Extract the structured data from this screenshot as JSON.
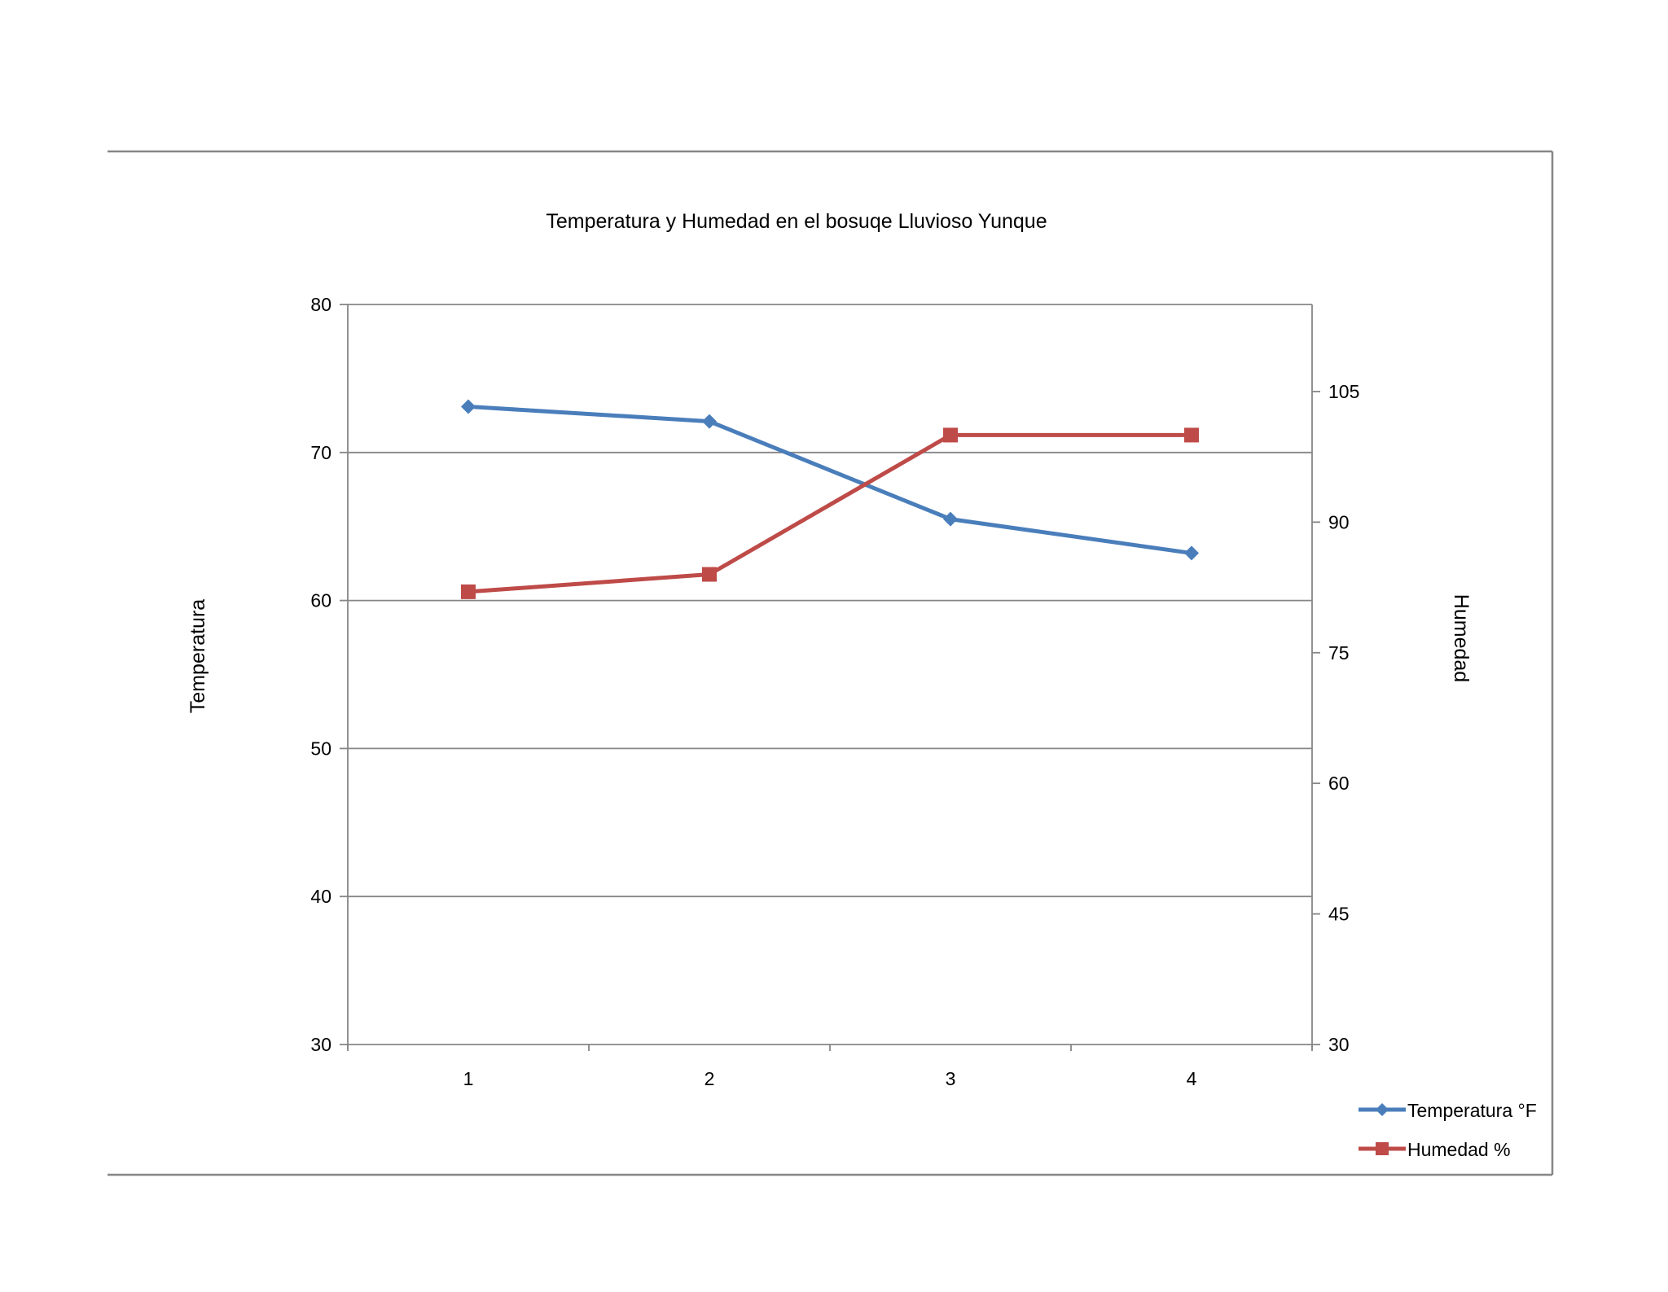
{
  "chart_data": {
    "type": "line",
    "title": "Temperatura y Humedad en el bosuqe Lluvioso  Yunque",
    "categories": [
      "1",
      "2",
      "3",
      "4"
    ],
    "y_left": {
      "label": "Temperatura",
      "range": [
        30,
        80
      ],
      "ticks": [
        "30",
        "40",
        "50",
        "60",
        "70",
        "80"
      ]
    },
    "y_right": {
      "label": "Humedad",
      "range": [
        30,
        115
      ],
      "ticks": [
        "30",
        "45",
        "60",
        "75",
        "90",
        "105"
      ]
    },
    "grid": true,
    "legend_position": "bottom-right",
    "series": [
      {
        "name": "Temperatura °F",
        "axis": "left",
        "marker": "diamond",
        "color": "#4a7ebb",
        "values": [
          73.1,
          72.1,
          65.5,
          63.2
        ]
      },
      {
        "name": "Humedad %",
        "axis": "right",
        "marker": "square",
        "color": "#be4b48",
        "values": [
          82,
          84,
          100,
          100
        ]
      }
    ]
  }
}
